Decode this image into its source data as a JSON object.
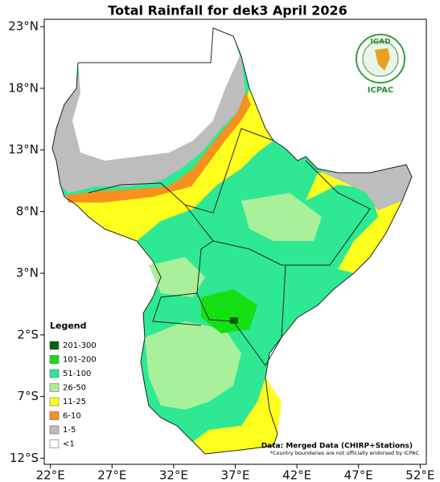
{
  "title": "Total Rainfall for dek3 April 2026",
  "map": {
    "xlim": [
      21.5,
      52.5
    ],
    "ylim": [
      -12.5,
      23.6
    ],
    "xticks": [
      {
        "value": 22,
        "label": "22°E"
      },
      {
        "value": 27,
        "label": "27°E"
      },
      {
        "value": 32,
        "label": "32°E"
      },
      {
        "value": 37,
        "label": "37°E"
      },
      {
        "value": 42,
        "label": "42°E"
      },
      {
        "value": 47,
        "label": "47°E"
      },
      {
        "value": 52,
        "label": "52°E"
      }
    ],
    "yticks": [
      {
        "value": 23,
        "label": "23°N"
      },
      {
        "value": 18,
        "label": "18°N"
      },
      {
        "value": 13,
        "label": "13°N"
      },
      {
        "value": 8,
        "label": "8°N"
      },
      {
        "value": 3,
        "label": "3°N"
      },
      {
        "value": -2,
        "label": "2°S"
      },
      {
        "value": -7,
        "label": "7°S"
      },
      {
        "value": -12,
        "label": "12°S"
      }
    ]
  },
  "legend": {
    "title": "Legend",
    "items": [
      {
        "label": "201-300",
        "color": "#006400"
      },
      {
        "label": "101-200",
        "color": "#14e014"
      },
      {
        "label": "51-100",
        "color": "#2ee894"
      },
      {
        "label": "26-50",
        "color": "#a8f09a"
      },
      {
        "label": "11-25",
        "color": "#ffff1e"
      },
      {
        "label": "6-10",
        "color": "#f7901e"
      },
      {
        "label": "1-5",
        "color": "#bdbdbd"
      },
      {
        "label": "<1",
        "color": "#ffffff"
      }
    ]
  },
  "logo": {
    "name": "IGAD",
    "caption": "ICPAC"
  },
  "credit": "Data: Merged Data (CHIRP+Stations)",
  "disclaimer": "*Country boundaries are not officially endorsed by ICPAC"
}
